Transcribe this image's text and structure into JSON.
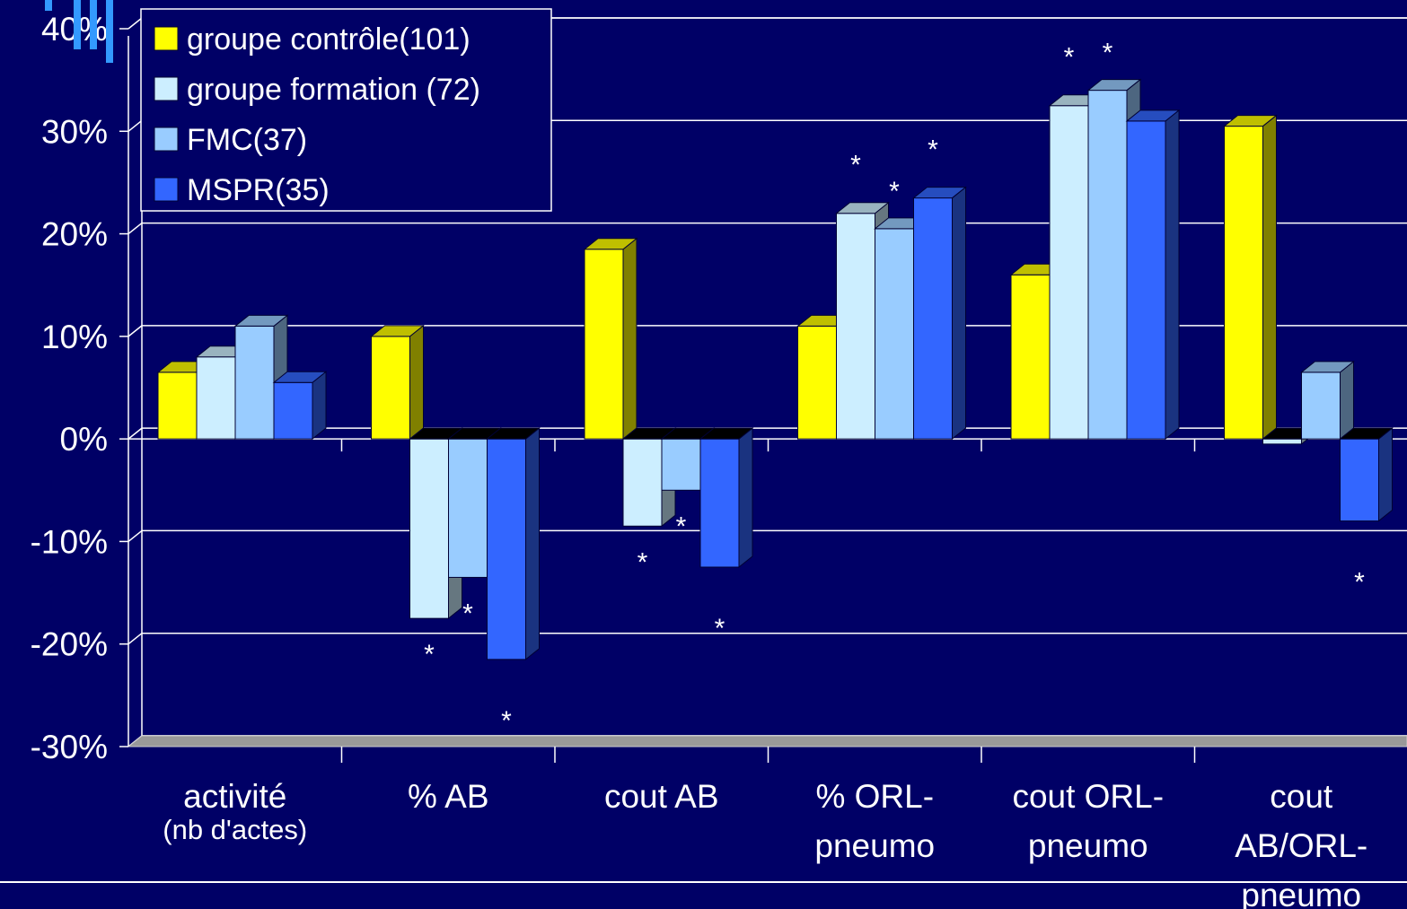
{
  "chart_data": {
    "type": "bar",
    "categories": [
      {
        "label": [
          "activité"
        ],
        "sub": "(nb d'actes)"
      },
      {
        "label": [
          "% AB"
        ],
        "sub": ""
      },
      {
        "label": [
          "cout AB"
        ],
        "sub": ""
      },
      {
        "label": [
          "% ORL-",
          "pneumo"
        ],
        "sub": ""
      },
      {
        "label": [
          "cout ORL-",
          "pneumo"
        ],
        "sub": ""
      },
      {
        "label": [
          "cout",
          "AB/ORL-",
          "pneumo"
        ],
        "sub": ""
      }
    ],
    "series": [
      {
        "name": "groupe contrôle(101)",
        "color": "#ffff00",
        "values": [
          6.5,
          10,
          18.5,
          11,
          16,
          30.5
        ]
      },
      {
        "name": "groupe formation (72)",
        "color": "#cceeff",
        "values": [
          8,
          -17.5,
          -8.5,
          22,
          32.5,
          -0.5
        ]
      },
      {
        "name": "FMC(37)",
        "color": "#99ccff",
        "values": [
          11,
          -13.5,
          -5,
          20.5,
          34,
          6.5
        ]
      },
      {
        "name": "MSPR(35)",
        "color": "#3366ff",
        "values": [
          5.5,
          -21.5,
          -12.5,
          23.5,
          31,
          -8
        ]
      }
    ],
    "significance": [
      [
        false,
        false,
        false,
        false
      ],
      [
        false,
        true,
        true,
        true
      ],
      [
        false,
        true,
        true,
        true
      ],
      [
        false,
        true,
        true,
        true
      ],
      [
        false,
        true,
        true,
        false
      ],
      [
        false,
        false,
        false,
        true
      ]
    ],
    "star_symbol": "*",
    "ylim": [
      -30,
      40
    ],
    "yticks": [
      "40%",
      "30%",
      "20%",
      "10%",
      "0%",
      "-10%",
      "-20%",
      "-30%"
    ],
    "grid": true,
    "legend_position": "top-left",
    "title": "",
    "xlabel": "",
    "ylabel": ""
  }
}
